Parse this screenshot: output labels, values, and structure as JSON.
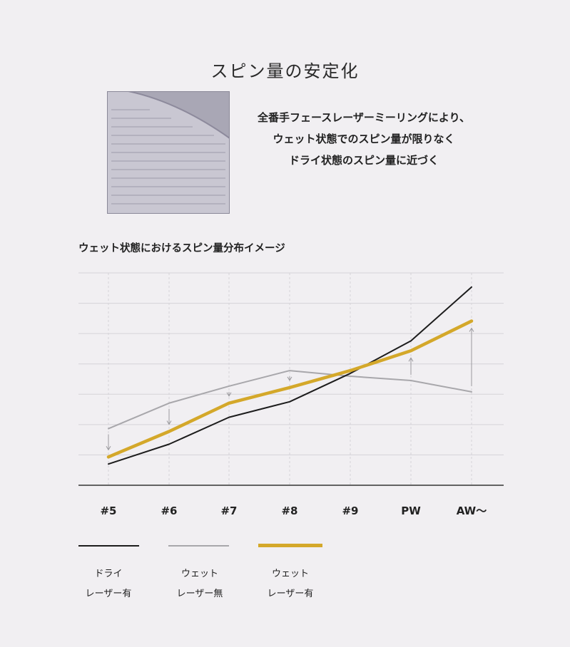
{
  "title": "スピン量の安定化",
  "description": [
    "全番手フェースレーザーミーリングにより、",
    "ウェット状態でのスピン量が限りなく",
    "ドライ状態のスピン量に近づく"
  ],
  "chart_data": {
    "type": "line",
    "title": "ウェット状態におけるスピン量分布イメージ",
    "categories": [
      "#5",
      "#6",
      "#7",
      "#8",
      "#9",
      "PW",
      "AW〜"
    ],
    "ylim": [
      0,
      7.5
    ],
    "grid": true,
    "series": [
      {
        "name": "ドライ レーザー有",
        "color": "#1c1c1c",
        "values": [
          0.75,
          1.45,
          2.4,
          2.95,
          3.95,
          5.1,
          7.0
        ]
      },
      {
        "name": "ウェット レーザー無",
        "color": "#a8a7ab",
        "values": [
          2.0,
          2.9,
          3.5,
          4.05,
          3.85,
          3.7,
          3.3
        ]
      },
      {
        "name": "ウェット レーザー有",
        "color": "#d4a82a",
        "values": [
          1.0,
          1.9,
          2.9,
          3.45,
          4.05,
          4.75,
          5.8
        ]
      }
    ]
  },
  "legend": [
    {
      "line1": "ドライ",
      "line2": "レーザー有",
      "color": "#1c1c1c"
    },
    {
      "line1": "ウェット",
      "line2": "レーザー無",
      "color": "#a8a7ab"
    },
    {
      "line1": "ウェット",
      "line2": "レーザー有",
      "color": "#d4a82a"
    }
  ]
}
